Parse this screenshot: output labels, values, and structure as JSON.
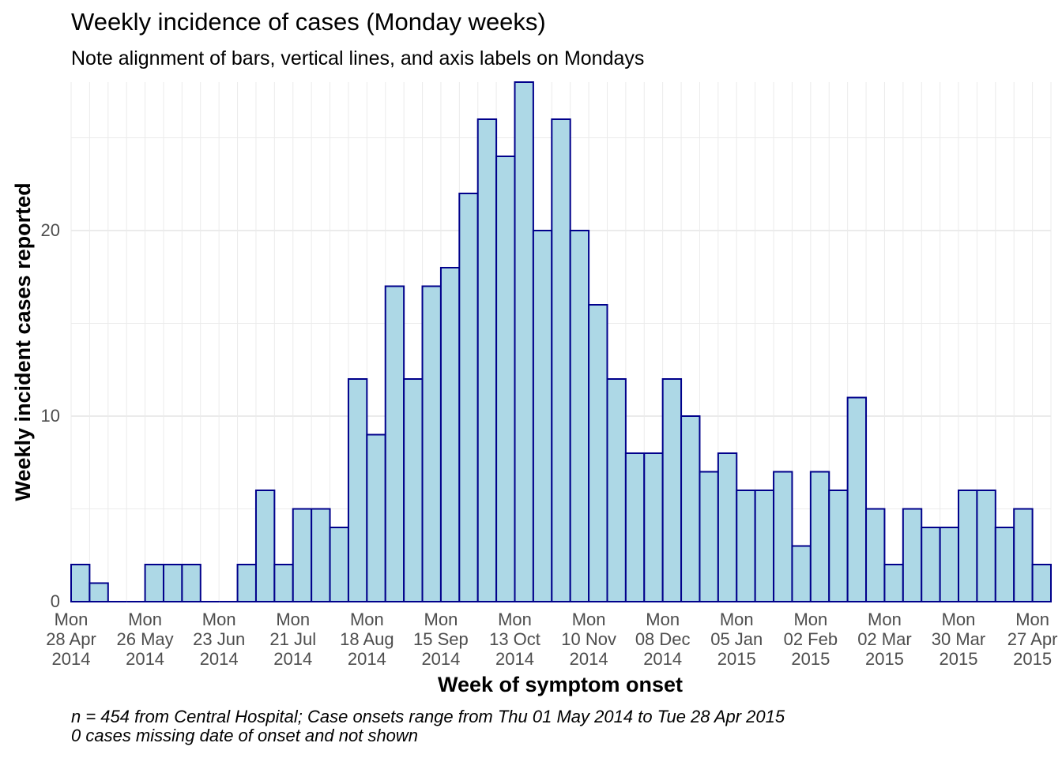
{
  "chart_data": {
    "type": "bar",
    "title": "Weekly incidence of cases (Monday weeks)",
    "subtitle": "Note alignment of bars, vertical lines, and axis labels on Mondays",
    "xlabel": "Week of symptom onset",
    "ylabel": "Weekly incident cases reported",
    "caption_lines": [
      "n = 454 from Central Hospital; Case onsets range from Thu 01 May 2014 to Tue 28 Apr 2015",
      "0 cases missing date of onset and not shown"
    ],
    "x_start": "2014-04-28",
    "week_days": 7,
    "values": [
      2,
      1,
      0,
      0,
      2,
      2,
      2,
      0,
      0,
      2,
      6,
      2,
      5,
      5,
      4,
      12,
      9,
      17,
      12,
      17,
      18,
      22,
      26,
      24,
      28,
      20,
      26,
      20,
      16,
      12,
      8,
      8,
      12,
      10,
      7,
      8,
      6,
      6,
      7,
      3,
      7,
      6,
      11,
      5,
      2,
      5,
      4,
      4,
      6,
      6,
      4,
      5,
      2
    ],
    "ylim": [
      0,
      28
    ],
    "yticks": [
      0,
      10,
      20
    ],
    "xticks": [
      {
        "date": "2014-04-28",
        "label": [
          "Mon",
          "28 Apr",
          "2014"
        ]
      },
      {
        "date": "2014-05-26",
        "label": [
          "Mon",
          "26 May",
          "2014"
        ]
      },
      {
        "date": "2014-06-23",
        "label": [
          "Mon",
          "23 Jun",
          "2014"
        ]
      },
      {
        "date": "2014-07-21",
        "label": [
          "Mon",
          "21 Jul",
          "2014"
        ]
      },
      {
        "date": "2014-08-18",
        "label": [
          "Mon",
          "18 Aug",
          "2014"
        ]
      },
      {
        "date": "2014-09-15",
        "label": [
          "Mon",
          "15 Sep",
          "2014"
        ]
      },
      {
        "date": "2014-10-13",
        "label": [
          "Mon",
          "13 Oct",
          "2014"
        ]
      },
      {
        "date": "2014-11-10",
        "label": [
          "Mon",
          "10 Nov",
          "2014"
        ]
      },
      {
        "date": "2014-12-08",
        "label": [
          "Mon",
          "08 Dec",
          "2014"
        ]
      },
      {
        "date": "2015-01-05",
        "label": [
          "Mon",
          "05 Jan",
          "2015"
        ]
      },
      {
        "date": "2015-02-02",
        "label": [
          "Mon",
          "02 Feb",
          "2015"
        ]
      },
      {
        "date": "2015-03-02",
        "label": [
          "Mon",
          "02 Mar",
          "2015"
        ]
      },
      {
        "date": "2015-03-30",
        "label": [
          "Mon",
          "30 Mar",
          "2015"
        ]
      },
      {
        "date": "2015-04-27",
        "label": [
          "Mon",
          "27 Apr",
          "2015"
        ]
      }
    ],
    "bar_fill": "#add8e6",
    "bar_stroke": "#00008b",
    "grid": true,
    "grid_color": "#ebebeb",
    "legend": "none"
  }
}
